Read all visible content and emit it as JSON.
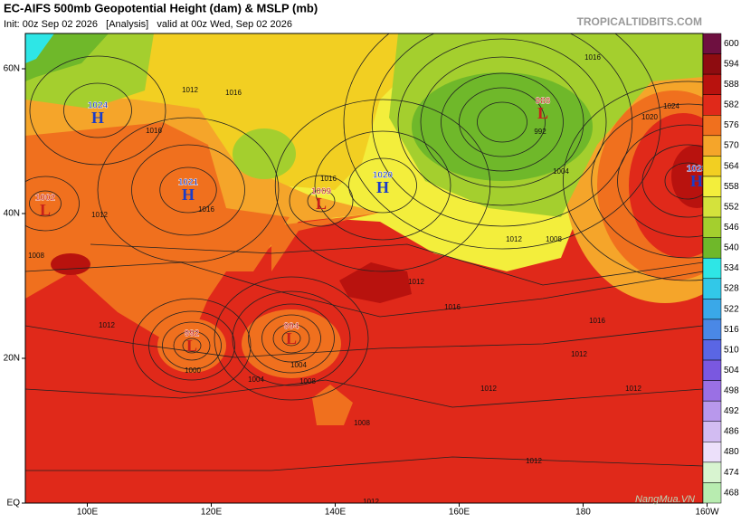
{
  "header": {
    "title": "EC-AIFS 500mb Geopotential Height (dam) & MSLP (mb)",
    "subtitle": "Init: 00z Sep 02 2026   [Analysis]   valid at 00z Wed, Sep 02 2026",
    "credit": "TROPICALTIDBITS.COM"
  },
  "map": {
    "lat_ticks": [
      {
        "value": 60,
        "label": "60N"
      },
      {
        "value": 40,
        "label": "40N"
      },
      {
        "value": 20,
        "label": "20N"
      },
      {
        "value": 0,
        "label": "EQ"
      }
    ],
    "lon_ticks": [
      {
        "value": 100,
        "label": "100E"
      },
      {
        "value": 120,
        "label": "120E"
      },
      {
        "value": 140,
        "label": "140E"
      },
      {
        "value": 160,
        "label": "160E"
      },
      {
        "value": 180,
        "label": "180"
      },
      {
        "value": 200,
        "label": "160W"
      }
    ],
    "colorbar": [
      {
        "value": 600,
        "color": "#6e1040"
      },
      {
        "value": 594,
        "color": "#8e0c10"
      },
      {
        "value": 588,
        "color": "#b8120e"
      },
      {
        "value": 582,
        "color": "#e0291a"
      },
      {
        "value": 576,
        "color": "#f0701e"
      },
      {
        "value": 570,
        "color": "#f5a52a"
      },
      {
        "value": 564,
        "color": "#f2cf22"
      },
      {
        "value": 558,
        "color": "#f3ee3c"
      },
      {
        "value": 552,
        "color": "#d4e23c"
      },
      {
        "value": 546,
        "color": "#a4cf2e"
      },
      {
        "value": 540,
        "color": "#6fb82a"
      },
      {
        "value": 534,
        "color": "#2ee6e6"
      },
      {
        "value": 528,
        "color": "#32c8e8"
      },
      {
        "value": 522,
        "color": "#3aa8e8"
      },
      {
        "value": 516,
        "color": "#4a88e6"
      },
      {
        "value": 510,
        "color": "#5a66e4"
      },
      {
        "value": 504,
        "color": "#7a58e0"
      },
      {
        "value": 498,
        "color": "#9a70e4"
      },
      {
        "value": 492,
        "color": "#b898ec"
      },
      {
        "value": 486,
        "color": "#d2bcf2"
      },
      {
        "value": 480,
        "color": "#ece0fa"
      },
      {
        "value": 474,
        "color": "#d8f4d0"
      },
      {
        "value": 468,
        "color": "#b8ecb0"
      }
    ],
    "centers": [
      {
        "type": "H",
        "pressure": 1024
      },
      {
        "type": "H",
        "pressure": 1021
      },
      {
        "type": "H",
        "pressure": 1020
      },
      {
        "type": "L",
        "pressure": 1002
      },
      {
        "type": "L",
        "pressure": 1009
      },
      {
        "type": "L",
        "pressure": 988
      },
      {
        "type": "L",
        "pressure": 992
      },
      {
        "type": "L",
        "pressure": 994
      },
      {
        "type": "H",
        "pressure": 1028
      }
    ],
    "contour_labels": [
      "1012",
      "1016",
      "1012",
      "1016",
      "1008",
      "1012",
      "1016",
      "1004",
      "1012",
      "1016",
      "1008",
      "1000",
      "1004",
      "1008",
      "1012",
      "1012",
      "1012",
      "992",
      "1004",
      "1008",
      "1012",
      "1016",
      "1020",
      "1024",
      "1016",
      "1012",
      "1012",
      "1016"
    ]
  },
  "watermark": "NangMua.VN"
}
